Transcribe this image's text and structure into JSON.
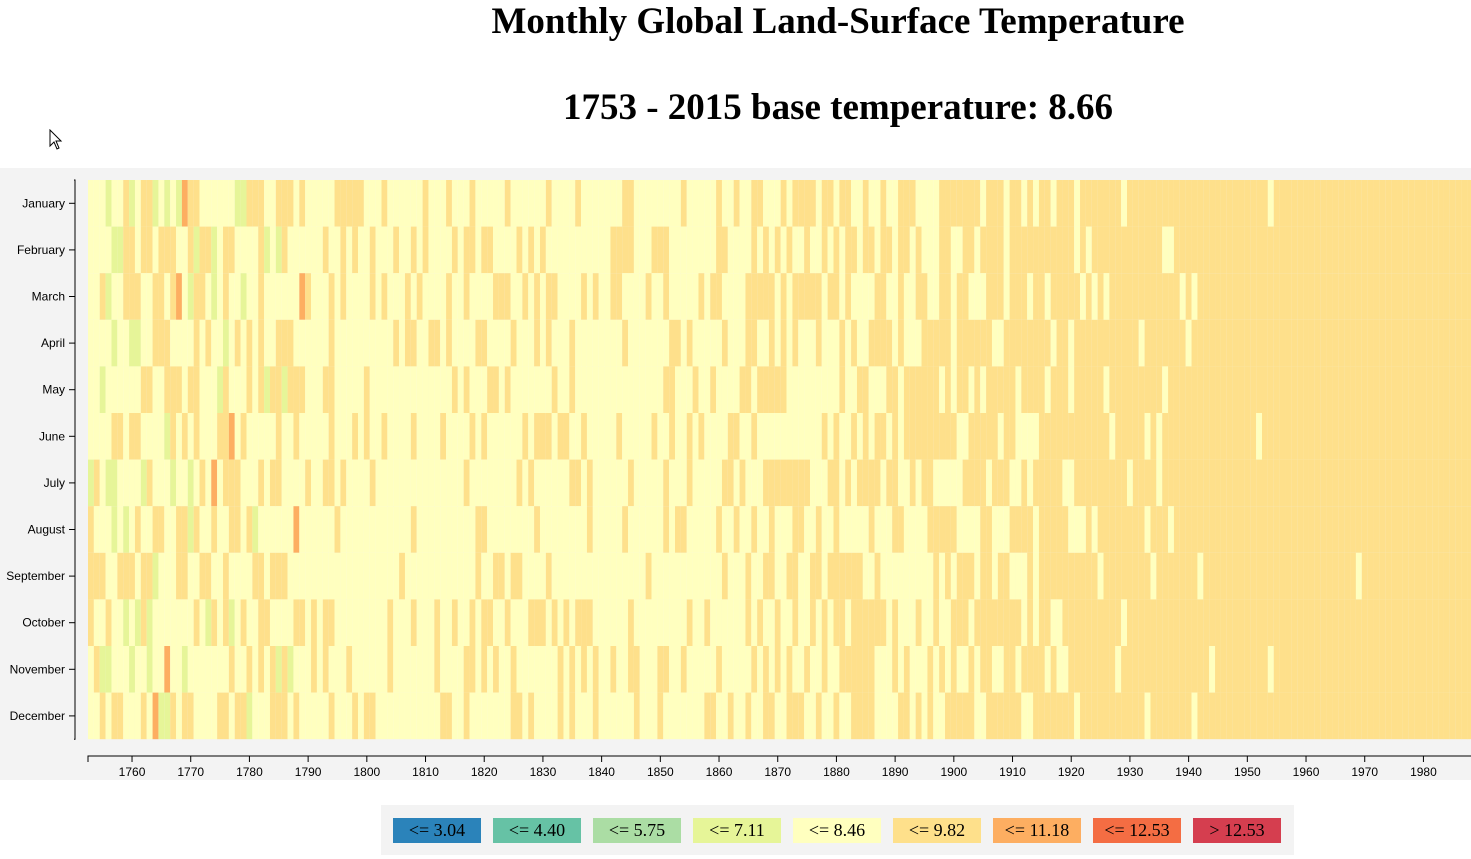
{
  "header": {
    "title": "Monthly Global Land-Surface Temperature",
    "subtitle": "1753 - 2015 base temperature: 8.66"
  },
  "chart_data": {
    "type": "heatmap",
    "title": "Monthly Global Land-Surface Temperature",
    "subtitle": "1753 - 2015 base temperature: 8.66",
    "base_temperature": 8.66,
    "x_range": [
      1753,
      2015
    ],
    "months": [
      "January",
      "February",
      "March",
      "April",
      "May",
      "June",
      "July",
      "August",
      "September",
      "October",
      "November",
      "December"
    ],
    "x_ticks": [
      1760,
      1770,
      1780,
      1790,
      1800,
      1810,
      1820,
      1830,
      1840,
      1850,
      1860,
      1870,
      1880,
      1890,
      1900,
      1910,
      1920,
      1930,
      1940,
      1950,
      1960,
      1970,
      1980
    ],
    "legend": [
      {
        "label": "<= 3.04",
        "max": 3.04,
        "color": "#2b83ba"
      },
      {
        "label": "<= 4.40",
        "max": 4.4,
        "color": "#66c2a5"
      },
      {
        "label": "<= 5.75",
        "max": 5.75,
        "color": "#abdda4"
      },
      {
        "label": "<= 7.11",
        "max": 7.11,
        "color": "#e6f598"
      },
      {
        "label": "<= 8.46",
        "max": 8.46,
        "color": "#ffffbf"
      },
      {
        "label": "<= 9.82",
        "max": 9.82,
        "color": "#fee08b"
      },
      {
        "label": "<= 11.18",
        "max": 11.18,
        "color": "#fdae61"
      },
      {
        "label": "<= 12.53",
        "max": 12.53,
        "color": "#f46d43"
      },
      {
        "label": "> 12.53",
        "max": 99,
        "color": "#d53e4f"
      }
    ],
    "grid": false
  }
}
